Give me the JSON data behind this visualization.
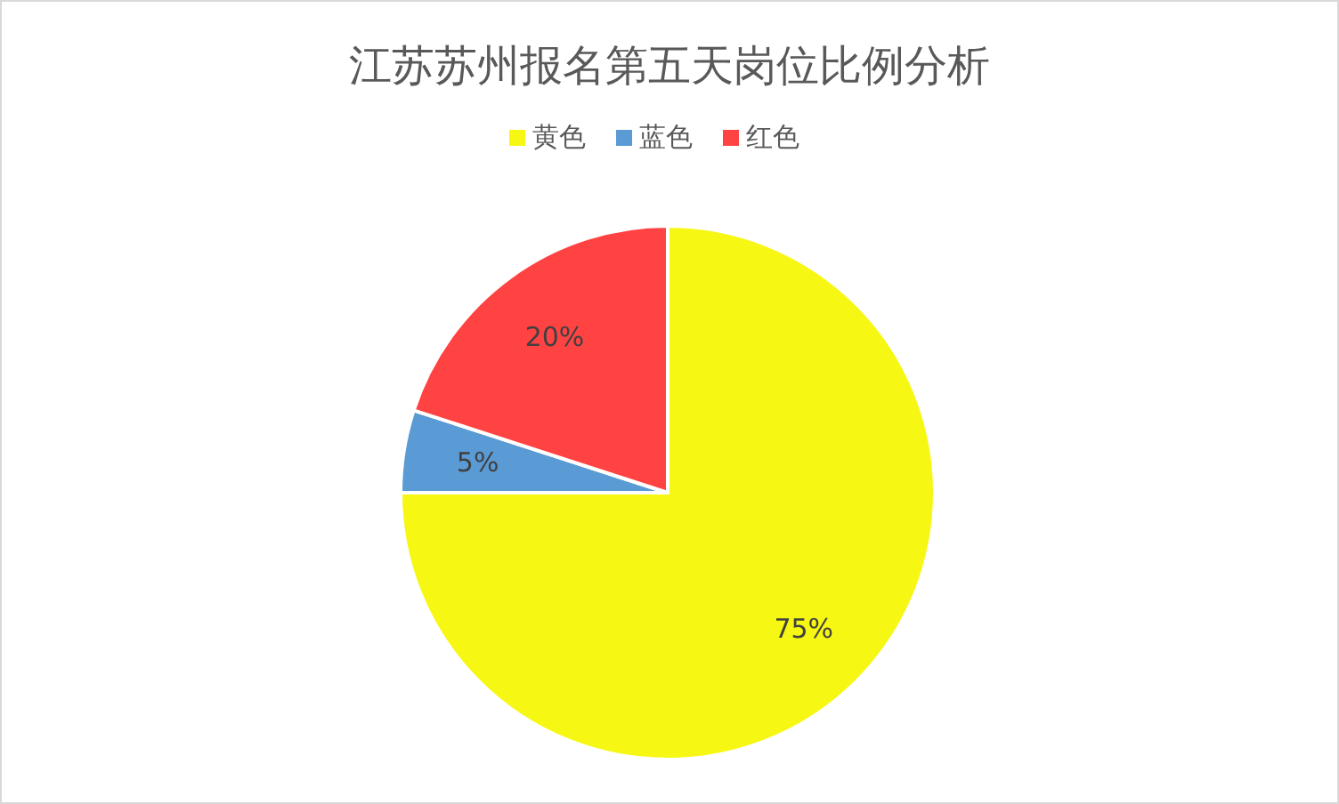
{
  "chart_data": {
    "type": "pie",
    "title": "江苏苏州报名第五天岗位比例分析",
    "categories": [
      "黄色",
      "蓝色",
      "红色"
    ],
    "values": [
      75,
      5,
      20
    ],
    "colors": [
      "#f7f714",
      "#5b9bd5",
      "#ff4343"
    ],
    "value_labels": [
      "75%",
      "5%",
      "20%"
    ],
    "legend": "top"
  }
}
